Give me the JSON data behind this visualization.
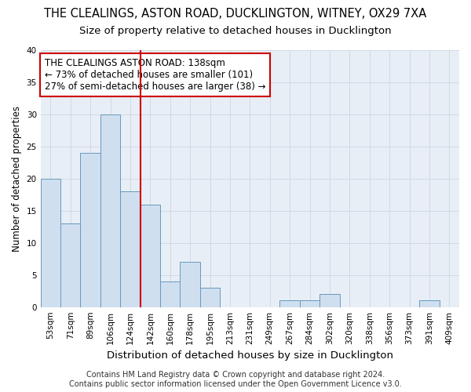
{
  "title": "THE CLEALINGS, ASTON ROAD, DUCKLINGTON, WITNEY, OX29 7XA",
  "subtitle": "Size of property relative to detached houses in Ducklington",
  "xlabel": "Distribution of detached houses by size in Ducklington",
  "ylabel": "Number of detached properties",
  "categories": [
    "53sqm",
    "71sqm",
    "89sqm",
    "106sqm",
    "124sqm",
    "142sqm",
    "160sqm",
    "178sqm",
    "195sqm",
    "213sqm",
    "231sqm",
    "249sqm",
    "267sqm",
    "284sqm",
    "302sqm",
    "320sqm",
    "338sqm",
    "356sqm",
    "373sqm",
    "391sqm",
    "409sqm"
  ],
  "values": [
    20,
    13,
    24,
    30,
    18,
    16,
    4,
    7,
    3,
    0,
    0,
    0,
    1,
    1,
    2,
    0,
    0,
    0,
    0,
    1,
    0
  ],
  "bar_color": "#d0dff0",
  "bar_edge_color": "#6699bb",
  "vline_x_idx": 5,
  "vline_color": "#cc0000",
  "annotation_text": "THE CLEALINGS ASTON ROAD: 138sqm\n← 73% of detached houses are smaller (101)\n27% of semi-detached houses are larger (38) →",
  "annotation_box_color": "#ffffff",
  "annotation_box_edge": "#cc0000",
  "ylim": [
    0,
    40
  ],
  "yticks": [
    0,
    5,
    10,
    15,
    20,
    25,
    30,
    35,
    40
  ],
  "footer": "Contains HM Land Registry data © Crown copyright and database right 2024.\nContains public sector information licensed under the Open Government Licence v3.0.",
  "bg_color": "#ffffff",
  "plot_bg_color": "#e8eef6",
  "grid_color": "#c8d0dc",
  "title_fontsize": 10.5,
  "subtitle_fontsize": 9.5,
  "xlabel_fontsize": 9.5,
  "ylabel_fontsize": 8.5,
  "tick_fontsize": 7.5,
  "annotation_fontsize": 8.5,
  "footer_fontsize": 7
}
